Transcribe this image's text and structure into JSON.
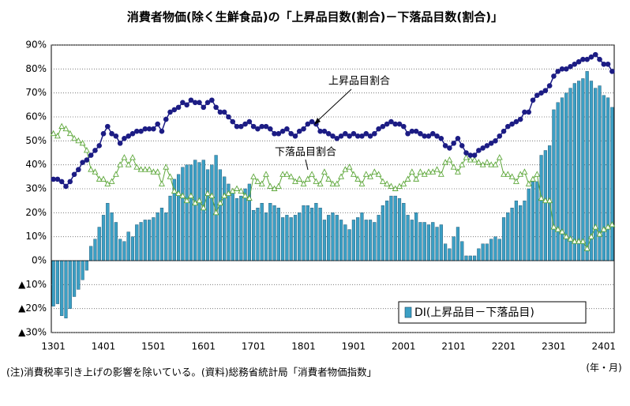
{
  "chart_data": {
    "type": "bar",
    "title": "消費者物価(除く生鮮食品)の「上昇品目数(割合)－下落品目数(割合)」",
    "categories": [
      "1301",
      null,
      null,
      null,
      null,
      null,
      null,
      null,
      null,
      null,
      null,
      null,
      "1401",
      null,
      null,
      null,
      null,
      null,
      null,
      null,
      null,
      null,
      null,
      null,
      "1501",
      null,
      null,
      null,
      null,
      null,
      null,
      null,
      null,
      null,
      null,
      null,
      "1601",
      null,
      null,
      null,
      null,
      null,
      null,
      null,
      null,
      null,
      null,
      null,
      "1701",
      null,
      null,
      null,
      null,
      null,
      null,
      null,
      null,
      null,
      null,
      null,
      "1801",
      null,
      null,
      null,
      null,
      null,
      null,
      null,
      null,
      null,
      null,
      null,
      "1901",
      null,
      null,
      null,
      null,
      null,
      null,
      null,
      null,
      null,
      null,
      null,
      "2001",
      null,
      null,
      null,
      null,
      null,
      null,
      null,
      null,
      null,
      null,
      null,
      "2101",
      null,
      null,
      null,
      null,
      null,
      null,
      null,
      null,
      null,
      null,
      null,
      "2201",
      null,
      null,
      null,
      null,
      null,
      null,
      null,
      null,
      null,
      null,
      null,
      "2301",
      null,
      null,
      null,
      null,
      null,
      null,
      null,
      null,
      null,
      null,
      null,
      "2401",
      null,
      null
    ],
    "series": [
      {
        "name": "DI(上昇品目－下落品目)",
        "type": "bar",
        "color": "#3b9fc4",
        "values": [
          -19,
          -18,
          -23,
          -24,
          -20,
          -15,
          -12,
          -8,
          -4,
          6,
          9,
          14,
          19,
          24,
          20,
          16,
          9,
          8,
          12,
          10,
          15,
          16,
          17,
          17,
          18,
          20,
          22,
          20,
          27,
          34,
          36,
          39,
          40,
          40,
          42,
          41,
          42,
          38,
          40,
          44,
          38,
          35,
          32,
          29,
          26,
          27,
          30,
          32,
          21,
          22,
          24,
          20,
          24,
          23,
          22,
          18,
          19,
          18,
          19,
          20,
          23,
          23,
          22,
          24,
          22,
          17,
          19,
          20,
          19,
          17,
          15,
          13,
          17,
          18,
          20,
          17,
          17,
          16,
          19,
          23,
          25,
          27,
          27,
          26,
          24,
          19,
          17,
          20,
          16,
          16,
          15,
          16,
          14,
          15,
          7,
          5,
          10,
          14,
          8,
          2,
          2,
          2,
          5,
          7,
          7,
          9,
          10,
          9,
          18,
          20,
          22,
          25,
          23,
          25,
          30,
          33,
          33,
          44,
          46,
          48,
          63,
          66,
          68,
          70,
          72,
          74,
          75,
          76,
          79,
          75,
          72,
          73,
          69,
          68,
          64
        ]
      },
      {
        "name": "上昇品目割合",
        "type": "line",
        "color": "#1c1c84",
        "values": [
          34,
          34,
          33,
          31,
          33,
          36,
          38,
          41,
          42,
          44,
          46,
          48,
          53,
          56,
          53,
          52,
          49,
          51,
          52,
          53,
          54,
          54,
          55,
          55,
          55,
          57,
          54,
          59,
          62,
          63,
          64,
          66,
          65,
          67,
          66,
          66,
          64,
          66,
          67,
          64,
          62,
          62,
          60,
          58,
          56,
          56,
          57,
          58,
          56,
          55,
          56,
          56,
          55,
          53,
          53,
          54,
          55,
          53,
          52,
          54,
          55,
          57,
          58,
          57,
          54,
          54,
          53,
          52,
          51,
          52,
          53,
          52,
          53,
          52,
          52,
          53,
          52,
          53,
          55,
          56,
          57,
          58,
          57,
          57,
          56,
          53,
          54,
          54,
          53,
          52,
          52,
          53,
          52,
          51,
          48,
          47,
          49,
          51,
          48,
          45,
          44,
          44,
          46,
          47,
          48,
          49,
          50,
          52,
          54,
          56,
          57,
          58,
          59,
          62,
          62,
          67,
          69,
          70,
          71,
          73,
          77,
          79,
          80,
          80,
          81,
          82,
          83,
          84,
          84,
          85,
          86,
          84,
          82,
          82,
          79
        ]
      },
      {
        "name": "下落品目割合",
        "type": "line",
        "color": "#5fa83c",
        "values": [
          53,
          52,
          56,
          55,
          53,
          51,
          50,
          49,
          46,
          38,
          37,
          34,
          34,
          32,
          33,
          36,
          40,
          43,
          40,
          43,
          39,
          38,
          38,
          38,
          37,
          37,
          32,
          39,
          35,
          29,
          28,
          27,
          25,
          27,
          24,
          25,
          22,
          28,
          27,
          20,
          24,
          27,
          28,
          29,
          30,
          29,
          27,
          26,
          35,
          33,
          32,
          36,
          31,
          30,
          31,
          36,
          36,
          35,
          33,
          34,
          32,
          34,
          36,
          33,
          32,
          37,
          34,
          32,
          32,
          35,
          38,
          39,
          36,
          34,
          32,
          36,
          35,
          37,
          36,
          33,
          32,
          31,
          30,
          31,
          32,
          34,
          37,
          34,
          37,
          36,
          37,
          37,
          38,
          36,
          41,
          42,
          39,
          37,
          40,
          43,
          42,
          42,
          41,
          40,
          41,
          40,
          40,
          43,
          36,
          36,
          35,
          33,
          36,
          37,
          32,
          34,
          36,
          26,
          25,
          25,
          14,
          13,
          12,
          10,
          9,
          8,
          8,
          8,
          5,
          10,
          14,
          11,
          13,
          14,
          15
        ]
      }
    ],
    "ylim": [
      -30,
      90
    ],
    "yticks": [
      {
        "value": -30,
        "label": "▲30%"
      },
      {
        "value": -20,
        "label": "▲20%"
      },
      {
        "value": -10,
        "label": "▲10%"
      },
      {
        "value": 0,
        "label": "0%"
      },
      {
        "value": 10,
        "label": "10%"
      },
      {
        "value": 20,
        "label": "20%"
      },
      {
        "value": 30,
        "label": "30%"
      },
      {
        "value": 40,
        "label": "40%"
      },
      {
        "value": 50,
        "label": "50%"
      },
      {
        "value": 60,
        "label": "60%"
      },
      {
        "value": 70,
        "label": "70%"
      },
      {
        "value": 80,
        "label": "80%"
      },
      {
        "value": 90,
        "label": "90%"
      }
    ],
    "grid": true,
    "annotations": [
      "上昇品目割合",
      "下落品目割合"
    ],
    "x_unit": "(年・月)",
    "footnote": "(注)消費税率引き上げの影響を除いている。(資料)総務省統計局「消費者物価指数」"
  }
}
